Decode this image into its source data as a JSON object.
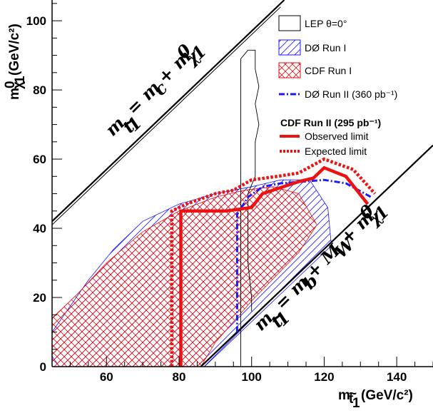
{
  "chart_data": {
    "type": "area",
    "xlabel": "m (GeV/c²)",
    "xlabel_sym": "m",
    "xlabel_sub": "t̃₁",
    "xlabel_unit": "(GeV/c²)",
    "ylabel_sym": "m",
    "ylabel_sub": "χ̃⁰₁",
    "ylabel_unit": "(GeV/c²)",
    "xlim": [
      45,
      150
    ],
    "ylim": [
      0,
      106
    ],
    "xticks": [
      60,
      80,
      100,
      120,
      140
    ],
    "yticks": [
      0,
      20,
      40,
      60,
      80,
      100
    ],
    "kinematic_labels": {
      "upper": "m  = m  + m",
      "upper_subs": [
        "t̃₁",
        "c",
        "χ̃⁰₁"
      ],
      "lower": "m  = m  + M  + m",
      "lower_subs": [
        "t̃₁",
        "b",
        "W",
        "χ̃⁰₁"
      ]
    },
    "kinematic_lines": [
      {
        "name": "upper",
        "points": [
          [
            45,
            42
          ],
          [
            109,
            106
          ]
        ]
      },
      {
        "name": "lower",
        "points": [
          [
            86,
            0
          ],
          [
            150,
            64
          ]
        ]
      }
    ],
    "legend": {
      "position": "top-right",
      "entries": [
        {
          "label": "LEP θ=0°",
          "style": "box-black"
        },
        {
          "label": "DØ Run I",
          "style": "hatch-blue"
        },
        {
          "label": "CDF Run I",
          "style": "hatch-red"
        },
        {
          "label": "DØ Run II (360 pb⁻¹)",
          "style": "dashdot-blue"
        }
      ],
      "cdf_title": "CDF Run II (295 pb⁻¹)",
      "cdf_entries": [
        {
          "label": "Observed limit",
          "style": "solid-red"
        },
        {
          "label": "Expected limit",
          "style": "dotted-red"
        }
      ]
    },
    "series": [
      {
        "name": "LEP θ=0°",
        "points": [
          [
            97,
            0
          ],
          [
            97,
            89
          ],
          [
            99,
            91.5
          ],
          [
            101,
            91.5
          ],
          [
            101,
            86
          ],
          [
            102,
            81
          ],
          [
            101,
            76
          ],
          [
            102,
            70
          ],
          [
            101,
            65
          ],
          [
            101,
            55
          ],
          [
            99,
            50
          ],
          [
            99,
            30
          ],
          [
            100,
            20
          ],
          [
            100,
            16
          ]
        ]
      },
      {
        "name": "DØ Run I",
        "points": [
          [
            45,
            3
          ],
          [
            45,
            10
          ],
          [
            55,
            25
          ],
          [
            62,
            34
          ],
          [
            70,
            42
          ],
          [
            80,
            47
          ],
          [
            90,
            50
          ],
          [
            100,
            52
          ],
          [
            108,
            54
          ],
          [
            116,
            54
          ],
          [
            121,
            46
          ],
          [
            122,
            35
          ],
          [
            110,
            23
          ],
          [
            95,
            8
          ],
          [
            87,
            0
          ],
          [
            47,
            0
          ]
        ]
      },
      {
        "name": "CDF Run I",
        "points": [
          [
            45,
            0
          ],
          [
            45,
            14
          ],
          [
            52,
            21
          ],
          [
            60,
            30
          ],
          [
            70,
            39
          ],
          [
            80,
            45
          ],
          [
            90,
            49
          ],
          [
            98,
            51
          ],
          [
            106,
            52
          ],
          [
            113,
            50
          ],
          [
            118,
            41
          ],
          [
            113,
            33
          ],
          [
            100,
            19
          ],
          [
            90,
            7
          ],
          [
            86,
            0
          ]
        ]
      },
      {
        "name": "DØ Run II (360 pb⁻¹)",
        "points": [
          [
            96,
            10
          ],
          [
            96,
            44
          ],
          [
            99,
            49
          ],
          [
            103,
            52
          ],
          [
            108,
            53
          ],
          [
            114,
            53.5
          ],
          [
            120,
            54
          ],
          [
            126,
            53
          ],
          [
            133,
            49
          ]
        ]
      },
      {
        "name": "Observed limit",
        "points": [
          [
            80.5,
            0
          ],
          [
            80.5,
            45
          ],
          [
            93,
            45
          ],
          [
            100,
            46
          ],
          [
            103,
            50
          ],
          [
            113,
            53.5
          ],
          [
            117,
            54.5
          ],
          [
            120,
            57.5
          ],
          [
            126,
            55
          ],
          [
            132,
            47
          ]
        ]
      },
      {
        "name": "Expected limit",
        "points": [
          [
            78,
            0
          ],
          [
            78,
            45
          ],
          [
            82,
            47
          ],
          [
            90,
            50
          ],
          [
            95,
            51
          ],
          [
            100,
            54
          ],
          [
            107,
            55
          ],
          [
            113,
            56
          ],
          [
            120,
            60
          ],
          [
            128,
            57
          ],
          [
            134,
            50
          ]
        ]
      }
    ]
  }
}
